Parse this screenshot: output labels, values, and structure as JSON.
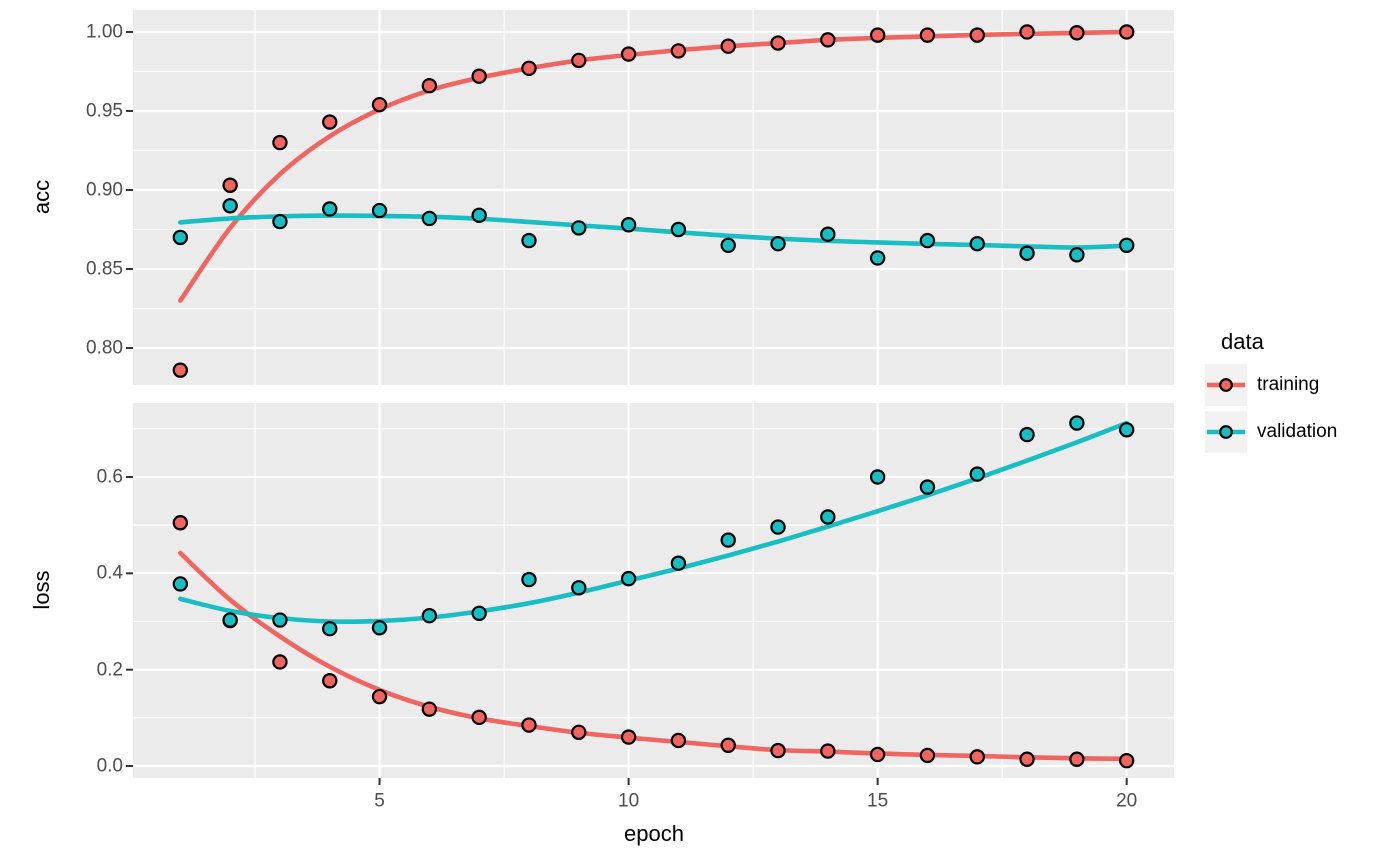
{
  "figure": {
    "background": "#FFFFFF",
    "panel_background": "#EBEBEB",
    "grid_color": "#FFFFFF",
    "tick_mark_color": "#333333",
    "tick_label_color": "#4D4D4D",
    "axis_title_color": "#000000",
    "legend_key_background": "#F2F2F2"
  },
  "x_axis": {
    "title": "epoch",
    "lim": [
      0.05,
      20.95
    ],
    "major_ticks": [
      {
        "v": 5,
        "label": "5"
      },
      {
        "v": 10,
        "label": "10"
      },
      {
        "v": 15,
        "label": "15"
      },
      {
        "v": 20,
        "label": "20"
      }
    ],
    "minor_breaks": [
      2.5,
      7.5,
      12.5,
      17.5
    ]
  },
  "legend": {
    "title": "data",
    "entries": [
      {
        "name": "training",
        "label": "training",
        "color": "#F0655F"
      },
      {
        "name": "validation",
        "label": "validation",
        "color": "#17BEC3"
      }
    ]
  },
  "chart_data": [
    {
      "type": "scatter",
      "facet_label": "acc",
      "ylim": [
        0.7766,
        1.0139
      ],
      "yticks": [
        {
          "v": 1.0,
          "label": "1.00"
        },
        {
          "v": 0.95,
          "label": "0.95"
        },
        {
          "v": 0.9,
          "label": "0.90"
        },
        {
          "v": 0.85,
          "label": "0.85"
        },
        {
          "v": 0.8,
          "label": "0.80"
        }
      ],
      "yminor": [
        0.825,
        0.875,
        0.925,
        0.975
      ],
      "x": [
        1,
        2,
        3,
        4,
        5,
        6,
        7,
        8,
        9,
        10,
        11,
        12,
        13,
        14,
        15,
        16,
        17,
        18,
        19,
        20
      ],
      "series": [
        {
          "name": "training",
          "color": "#F0655F",
          "points": [
            0.786,
            0.903,
            0.93,
            0.943,
            0.954,
            0.966,
            0.972,
            0.977,
            0.982,
            0.986,
            0.988,
            0.991,
            0.993,
            0.995,
            0.998,
            0.998,
            0.998,
            1.0,
            0.9995,
            1.0
          ],
          "smooth": [
            0.83,
            0.876,
            0.91,
            0.934,
            0.951,
            0.963,
            0.971,
            0.977,
            0.982,
            0.9855,
            0.9885,
            0.991,
            0.993,
            0.995,
            0.9962,
            0.9972,
            0.9981,
            0.9988,
            0.9994,
            1.0
          ]
        },
        {
          "name": "validation",
          "color": "#17BEC3",
          "points": [
            0.87,
            0.89,
            0.88,
            0.888,
            0.887,
            0.882,
            0.884,
            0.868,
            0.876,
            0.878,
            0.875,
            0.865,
            0.866,
            0.872,
            0.857,
            0.868,
            0.866,
            0.86,
            0.859,
            0.865
          ],
          "smooth": [
            0.8795,
            0.882,
            0.8833,
            0.8838,
            0.8836,
            0.883,
            0.8818,
            0.8798,
            0.8776,
            0.8756,
            0.8732,
            0.871,
            0.8692,
            0.8678,
            0.8668,
            0.8659,
            0.8652,
            0.8643,
            0.8636,
            0.8648
          ]
        }
      ]
    },
    {
      "type": "scatter",
      "facet_label": "loss",
      "ylim": [
        -0.0249,
        0.7536
      ],
      "yticks": [
        {
          "v": 0.6,
          "label": "0.6"
        },
        {
          "v": 0.4,
          "label": "0.4"
        },
        {
          "v": 0.2,
          "label": "0.2"
        },
        {
          "v": 0.0,
          "label": "0.0"
        }
      ],
      "yminor": [
        0.1,
        0.3,
        0.5,
        0.7
      ],
      "x": [
        1,
        2,
        3,
        4,
        5,
        6,
        7,
        8,
        9,
        10,
        11,
        12,
        13,
        14,
        15,
        16,
        17,
        18,
        19,
        20
      ],
      "series": [
        {
          "name": "training",
          "color": "#F0655F",
          "points": [
            0.505,
            0.302,
            0.216,
            0.177,
            0.144,
            0.118,
            0.101,
            0.085,
            0.07,
            0.06,
            0.053,
            0.043,
            0.032,
            0.031,
            0.024,
            0.022,
            0.019,
            0.014,
            0.014,
            0.011
          ],
          "smooth": [
            0.442,
            0.345,
            0.269,
            0.206,
            0.158,
            0.123,
            0.099,
            0.083,
            0.069,
            0.059,
            0.05,
            0.041,
            0.033,
            0.03,
            0.026,
            0.023,
            0.021,
            0.018,
            0.016,
            0.015
          ]
        },
        {
          "name": "validation",
          "color": "#17BEC3",
          "points": [
            0.378,
            0.303,
            0.303,
            0.285,
            0.287,
            0.312,
            0.317,
            0.387,
            0.37,
            0.389,
            0.421,
            0.469,
            0.496,
            0.517,
            0.6,
            0.579,
            0.606,
            0.688,
            0.712,
            0.698
          ],
          "smooth": [
            0.347,
            0.322,
            0.307,
            0.3,
            0.301,
            0.308,
            0.321,
            0.338,
            0.36,
            0.385,
            0.41,
            0.437,
            0.466,
            0.497,
            0.529,
            0.562,
            0.597,
            0.634,
            0.672,
            0.712
          ]
        }
      ]
    }
  ]
}
